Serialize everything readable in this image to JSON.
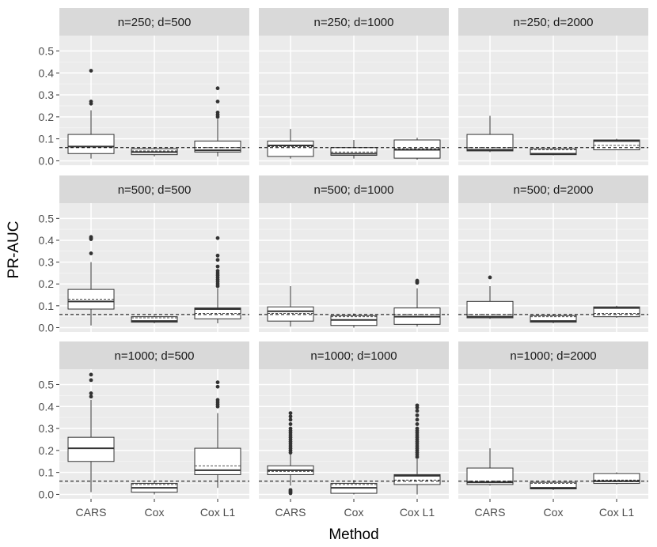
{
  "chart_data": {
    "type": "boxplot",
    "title": "",
    "xlabel": "Method",
    "ylabel": "PR-AUC",
    "ylim": [
      -0.02,
      0.57
    ],
    "yticks": [
      0.0,
      0.1,
      0.2,
      0.3,
      0.4,
      0.5
    ],
    "ytick_labels": [
      "0.0",
      "0.1",
      "0.2",
      "0.3",
      "0.4",
      "0.5"
    ],
    "categories": [
      "CARS",
      "Cox",
      "Cox L1"
    ],
    "reference_line": {
      "y": 0.06,
      "style": "dashed"
    },
    "grid": true,
    "facets": [
      {
        "label": "n=250; d=500",
        "boxes": [
          {
            "q1": 0.033,
            "median": 0.065,
            "q3": 0.12,
            "whisker_low": 0.01,
            "whisker_high": 0.23,
            "mean": 0.065,
            "outliers": [
              0.26,
              0.27,
              0.41
            ]
          },
          {
            "q1": 0.028,
            "median": 0.04,
            "q3": 0.055,
            "whisker_low": 0.02,
            "whisker_high": 0.06,
            "mean": 0.045,
            "outliers": []
          },
          {
            "q1": 0.04,
            "median": 0.048,
            "q3": 0.09,
            "whisker_low": 0.02,
            "whisker_high": 0.19,
            "mean": 0.06,
            "outliers": [
              0.2,
              0.21,
              0.22,
              0.27,
              0.33
            ]
          }
        ]
      },
      {
        "label": "n=250; d=1000",
        "boxes": [
          {
            "q1": 0.02,
            "median": 0.07,
            "q3": 0.09,
            "whisker_low": 0.01,
            "whisker_high": 0.145,
            "mean": 0.065,
            "outliers": []
          },
          {
            "q1": 0.025,
            "median": 0.032,
            "q3": 0.06,
            "whisker_low": 0.01,
            "whisker_high": 0.095,
            "mean": 0.04,
            "outliers": []
          },
          {
            "q1": 0.012,
            "median": 0.05,
            "q3": 0.095,
            "whisker_low": 0.005,
            "whisker_high": 0.105,
            "mean": 0.055,
            "outliers": []
          }
        ]
      },
      {
        "label": "n=250; d=2000",
        "boxes": [
          {
            "q1": 0.045,
            "median": 0.05,
            "q3": 0.12,
            "whisker_low": 0.04,
            "whisker_high": 0.205,
            "mean": 0.06,
            "outliers": []
          },
          {
            "q1": 0.028,
            "median": 0.032,
            "q3": 0.055,
            "whisker_low": 0.025,
            "whisker_high": 0.06,
            "mean": 0.05,
            "outliers": []
          },
          {
            "q1": 0.05,
            "median": 0.09,
            "q3": 0.095,
            "whisker_low": 0.05,
            "whisker_high": 0.1,
            "mean": 0.07,
            "outliers": []
          }
        ]
      },
      {
        "label": "n=500; d=500",
        "boxes": [
          {
            "q1": 0.085,
            "median": 0.12,
            "q3": 0.175,
            "whisker_low": 0.01,
            "whisker_high": 0.3,
            "mean": 0.13,
            "outliers": [
              0.34,
              0.405,
              0.41,
              0.415
            ]
          },
          {
            "q1": 0.025,
            "median": 0.03,
            "q3": 0.05,
            "whisker_low": 0.02,
            "whisker_high": 0.055,
            "mean": 0.045,
            "outliers": []
          },
          {
            "q1": 0.04,
            "median": 0.085,
            "q3": 0.09,
            "whisker_low": 0.02,
            "whisker_high": 0.18,
            "mean": 0.065,
            "outliers": [
              0.19,
              0.2,
              0.21,
              0.22,
              0.23,
              0.24,
              0.25,
              0.26,
              0.28,
              0.31,
              0.33,
              0.41
            ]
          }
        ]
      },
      {
        "label": "n=500; d=1000",
        "boxes": [
          {
            "q1": 0.03,
            "median": 0.075,
            "q3": 0.095,
            "whisker_low": 0.005,
            "whisker_high": 0.19,
            "mean": 0.065,
            "outliers": []
          },
          {
            "q1": 0.01,
            "median": 0.035,
            "q3": 0.055,
            "whisker_low": 0.0,
            "whisker_high": 0.065,
            "mean": 0.05,
            "outliers": []
          },
          {
            "q1": 0.015,
            "median": 0.05,
            "q3": 0.09,
            "whisker_low": 0.005,
            "whisker_high": 0.18,
            "mean": 0.06,
            "outliers": [
              0.205,
              0.21,
              0.215
            ]
          }
        ]
      },
      {
        "label": "n=500; d=2000",
        "boxes": [
          {
            "q1": 0.045,
            "median": 0.05,
            "q3": 0.12,
            "whisker_low": 0.04,
            "whisker_high": 0.19,
            "mean": 0.06,
            "outliers": [
              0.23
            ]
          },
          {
            "q1": 0.025,
            "median": 0.03,
            "q3": 0.055,
            "whisker_low": 0.02,
            "whisker_high": 0.06,
            "mean": 0.05,
            "outliers": []
          },
          {
            "q1": 0.05,
            "median": 0.09,
            "q3": 0.095,
            "whisker_low": 0.045,
            "whisker_high": 0.1,
            "mean": 0.065,
            "outliers": []
          }
        ]
      },
      {
        "label": "n=1000; d=500",
        "boxes": [
          {
            "q1": 0.15,
            "median": 0.21,
            "q3": 0.26,
            "whisker_low": 0.01,
            "whisker_high": 0.43,
            "mean": 0.21,
            "outliers": [
              0.445,
              0.46,
              0.52,
              0.545
            ]
          },
          {
            "q1": 0.01,
            "median": 0.03,
            "q3": 0.05,
            "whisker_low": 0.0,
            "whisker_high": 0.06,
            "mean": 0.045,
            "outliers": []
          },
          {
            "q1": 0.09,
            "median": 0.11,
            "q3": 0.21,
            "whisker_low": 0.03,
            "whisker_high": 0.37,
            "mean": 0.13,
            "outliers": [
              0.4,
              0.41,
              0.42,
              0.43,
              0.49,
              0.51
            ]
          }
        ]
      },
      {
        "label": "n=1000; d=1000",
        "boxes": [
          {
            "q1": 0.09,
            "median": 0.11,
            "q3": 0.13,
            "whisker_low": 0.04,
            "whisker_high": 0.185,
            "mean": 0.105,
            "outliers": [
              0.005,
              0.01,
              0.015,
              0.02,
              0.19,
              0.2,
              0.21,
              0.22,
              0.23,
              0.24,
              0.25,
              0.26,
              0.27,
              0.28,
              0.29,
              0.3,
              0.32,
              0.34,
              0.355,
              0.37
            ]
          },
          {
            "q1": 0.005,
            "median": 0.03,
            "q3": 0.05,
            "whisker_low": 0.0,
            "whisker_high": 0.065,
            "mean": 0.045,
            "outliers": []
          },
          {
            "q1": 0.045,
            "median": 0.085,
            "q3": 0.09,
            "whisker_low": 0.0,
            "whisker_high": 0.16,
            "mean": 0.065,
            "outliers": [
              0.17,
              0.18,
              0.19,
              0.2,
              0.21,
              0.22,
              0.23,
              0.24,
              0.25,
              0.26,
              0.27,
              0.28,
              0.29,
              0.3,
              0.32,
              0.34,
              0.36,
              0.38,
              0.395,
              0.405
            ]
          }
        ]
      },
      {
        "label": "n=1000; d=2000",
        "boxes": [
          {
            "q1": 0.045,
            "median": 0.055,
            "q3": 0.12,
            "whisker_low": 0.04,
            "whisker_high": 0.21,
            "mean": 0.06,
            "outliers": []
          },
          {
            "q1": 0.025,
            "median": 0.03,
            "q3": 0.055,
            "whisker_low": 0.02,
            "whisker_high": 0.06,
            "mean": 0.05,
            "outliers": []
          },
          {
            "q1": 0.05,
            "median": 0.06,
            "q3": 0.095,
            "whisker_low": 0.045,
            "whisker_high": 0.1,
            "mean": 0.065,
            "outliers": []
          }
        ]
      }
    ]
  },
  "colors": {
    "panel_bg": "#ebebeb",
    "strip_bg": "#d9d9d9",
    "grid_major": "#ffffff",
    "box_fill": "#ffffff",
    "box_stroke": "#333333",
    "outlier": "#333333",
    "reference": "#000000"
  }
}
